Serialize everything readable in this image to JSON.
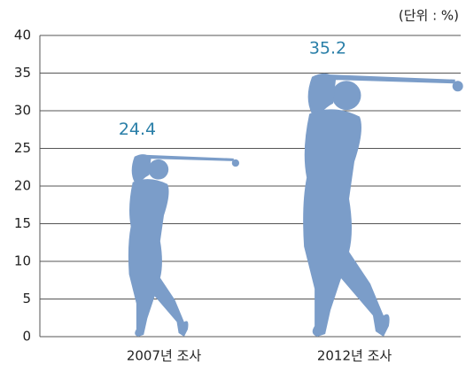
{
  "chart_data": {
    "type": "bar",
    "unit": "(단위 : %)",
    "categories": [
      "2007년 조사",
      "2012년 조사"
    ],
    "values": [
      24.4,
      35.2
    ],
    "color": "#7b9dc9",
    "label_color": "#2a7fa8",
    "ylim": [
      0,
      40
    ],
    "yticks": [
      0,
      5,
      10,
      15,
      20,
      25,
      30,
      35,
      40
    ],
    "grid": true
  }
}
